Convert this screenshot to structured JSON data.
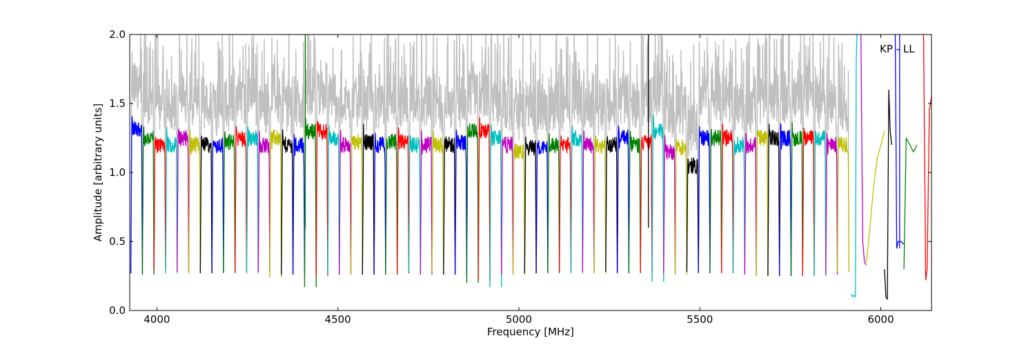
{
  "chart_data": {
    "type": "line",
    "annotation": "KP - LL",
    "xlabel": "Frequency [MHz]",
    "ylabel": "Amplitude [arbitrary units]",
    "xlim": [
      3925,
      6140
    ],
    "ylim": [
      0.0,
      2.0
    ],
    "xticks": [
      4000,
      4500,
      5000,
      5500,
      6000
    ],
    "xtick_labels": [
      "4000",
      "4500",
      "5000",
      "5500",
      "6000"
    ],
    "yticks": [
      0.0,
      0.5,
      1.0,
      1.5,
      2.0
    ],
    "ytick_labels": [
      "0.0",
      "0.5",
      "1.0",
      "1.5",
      "2.0"
    ],
    "grid": false,
    "background_color": "#c0c0c0",
    "channel_width_mhz": 32,
    "channel_colors": [
      "#0000ff",
      "#008000",
      "#ff0000",
      "#00bfbf",
      "#bf00bf",
      "#bfbf00",
      "#000000"
    ],
    "channels": [
      {
        "start": 3928,
        "level": 1.32,
        "floor": 0.27
      },
      {
        "start": 3960,
        "level": 1.25,
        "floor": 0.26
      },
      {
        "start": 3992,
        "level": 1.2,
        "floor": 0.3
      },
      {
        "start": 4024,
        "level": 1.2,
        "floor": 0.27
      },
      {
        "start": 4056,
        "level": 1.25,
        "floor": 0.28
      },
      {
        "start": 4088,
        "level": 1.2,
        "floor": 0.27
      },
      {
        "start": 4120,
        "level": 1.2,
        "floor": 0.27
      },
      {
        "start": 4152,
        "level": 1.2,
        "floor": 0.28
      },
      {
        "start": 4184,
        "level": 1.22,
        "floor": 0.27
      },
      {
        "start": 4216,
        "level": 1.25,
        "floor": 0.28
      },
      {
        "start": 4248,
        "level": 1.25,
        "floor": 0.27
      },
      {
        "start": 4280,
        "level": 1.2,
        "floor": 0.28
      },
      {
        "start": 4312,
        "level": 1.25,
        "floor": 0.24
      },
      {
        "start": 4344,
        "level": 1.2,
        "floor": 0.26
      },
      {
        "start": 4376,
        "level": 1.2,
        "floor": 0.26
      },
      {
        "start": 4408,
        "level": 1.3,
        "floor": 0.17
      },
      {
        "start": 4440,
        "level": 1.3,
        "floor": 0.25
      },
      {
        "start": 4472,
        "level": 1.25,
        "floor": 0.26
      },
      {
        "start": 4504,
        "level": 1.2,
        "floor": 0.26
      },
      {
        "start": 4536,
        "level": 1.22,
        "floor": 0.26
      },
      {
        "start": 4568,
        "level": 1.22,
        "floor": 0.26
      },
      {
        "start": 4600,
        "level": 1.2,
        "floor": 0.26
      },
      {
        "start": 4632,
        "level": 1.22,
        "floor": 0.26
      },
      {
        "start": 4664,
        "level": 1.22,
        "floor": 0.27
      },
      {
        "start": 4696,
        "level": 1.2,
        "floor": 0.28
      },
      {
        "start": 4728,
        "level": 1.2,
        "floor": 0.26
      },
      {
        "start": 4760,
        "level": 1.2,
        "floor": 0.27
      },
      {
        "start": 4792,
        "level": 1.2,
        "floor": 0.26
      },
      {
        "start": 4824,
        "level": 1.22,
        "floor": 0.26
      },
      {
        "start": 4856,
        "level": 1.3,
        "floor": 0.2
      },
      {
        "start": 4888,
        "level": 1.3,
        "floor": 0.22
      },
      {
        "start": 4920,
        "level": 1.25,
        "floor": 0.17
      },
      {
        "start": 4952,
        "level": 1.2,
        "floor": 0.26
      },
      {
        "start": 4984,
        "level": 1.15,
        "floor": 0.26
      },
      {
        "start": 5016,
        "level": 1.18,
        "floor": 0.27
      },
      {
        "start": 5048,
        "level": 1.18,
        "floor": 0.28
      },
      {
        "start": 5080,
        "level": 1.2,
        "floor": 0.27
      },
      {
        "start": 5112,
        "level": 1.2,
        "floor": 0.28
      },
      {
        "start": 5144,
        "level": 1.25,
        "floor": 0.27
      },
      {
        "start": 5176,
        "level": 1.2,
        "floor": 0.28
      },
      {
        "start": 5208,
        "level": 1.2,
        "floor": 0.27
      },
      {
        "start": 5240,
        "level": 1.2,
        "floor": 0.28
      },
      {
        "start": 5272,
        "level": 1.25,
        "floor": 0.27
      },
      {
        "start": 5304,
        "level": 1.2,
        "floor": 0.27
      },
      {
        "start": 5336,
        "level": 1.22,
        "floor": 0.28
      },
      {
        "start": 5368,
        "level": 1.3,
        "floor": 0.21
      },
      {
        "start": 5400,
        "level": 1.15,
        "floor": 0.27
      },
      {
        "start": 5432,
        "level": 1.18,
        "floor": 0.26
      },
      {
        "start": 5464,
        "level": 1.05,
        "floor": 0.28
      },
      {
        "start": 5496,
        "level": 1.25,
        "floor": 0.27
      },
      {
        "start": 5528,
        "level": 1.25,
        "floor": 0.28
      },
      {
        "start": 5560,
        "level": 1.25,
        "floor": 0.27
      },
      {
        "start": 5592,
        "level": 1.2,
        "floor": 0.27
      },
      {
        "start": 5624,
        "level": 1.2,
        "floor": 0.26
      },
      {
        "start": 5656,
        "level": 1.25,
        "floor": 0.25
      },
      {
        "start": 5688,
        "level": 1.25,
        "floor": 0.25
      },
      {
        "start": 5720,
        "level": 1.25,
        "floor": 0.25
      },
      {
        "start": 5752,
        "level": 1.25,
        "floor": 0.26
      },
      {
        "start": 5784,
        "level": 1.25,
        "floor": 0.25
      },
      {
        "start": 5816,
        "level": 1.25,
        "floor": 0.25
      },
      {
        "start": 5848,
        "level": 1.2,
        "floor": 0.26
      },
      {
        "start": 5880,
        "level": 1.2,
        "floor": 0.28
      }
    ],
    "special_segments": [
      {
        "x": [
          5918,
          5922,
          5926,
          5930,
          5932,
          5934
        ],
        "y": [
          0.12,
          0.1,
          0.11,
          0.1,
          1.8,
          2.0
        ],
        "color": "#00bfbf"
      },
      {
        "x": [
          5945,
          5950,
          5955,
          5960
        ],
        "y": [
          2.0,
          0.5,
          0.35,
          0.33
        ],
        "color": "#bf00bf"
      },
      {
        "x": [
          5960,
          5970,
          5980,
          5990,
          6000,
          6010
        ],
        "y": [
          0.35,
          0.6,
          0.9,
          1.1,
          1.2,
          1.3
        ],
        "color": "#bfbf00"
      },
      {
        "x": [
          6010,
          6014,
          6018,
          6022,
          6026,
          6030
        ],
        "y": [
          0.3,
          0.1,
          0.08,
          1.6,
          1.3,
          1.2
        ],
        "color": "#000000"
      },
      {
        "x": [
          6040,
          6044,
          6048,
          6056,
          6064
        ],
        "y": [
          2.0,
          0.45,
          0.5,
          0.5,
          0.48
        ],
        "color": "#0000ff"
      },
      {
        "x": [
          6064,
          6070,
          6080,
          6090,
          6100
        ],
        "y": [
          0.3,
          1.25,
          1.2,
          1.15,
          1.2
        ],
        "color": "#008000"
      },
      {
        "x": [
          6118,
          6124,
          6128,
          6134,
          6140
        ],
        "y": [
          2.0,
          0.22,
          0.3,
          1.45,
          1.55
        ],
        "color": "#ff0000"
      }
    ],
    "vertical_lines": [
      {
        "x": 4410,
        "y": [
          0.6,
          2.0
        ],
        "color": "#008000"
      },
      {
        "x": 5358,
        "y": [
          0.6,
          2.0
        ],
        "color": "#000000"
      },
      {
        "x": 6052,
        "y": [
          0.45,
          2.0
        ],
        "color": "#0000ff"
      }
    ]
  }
}
